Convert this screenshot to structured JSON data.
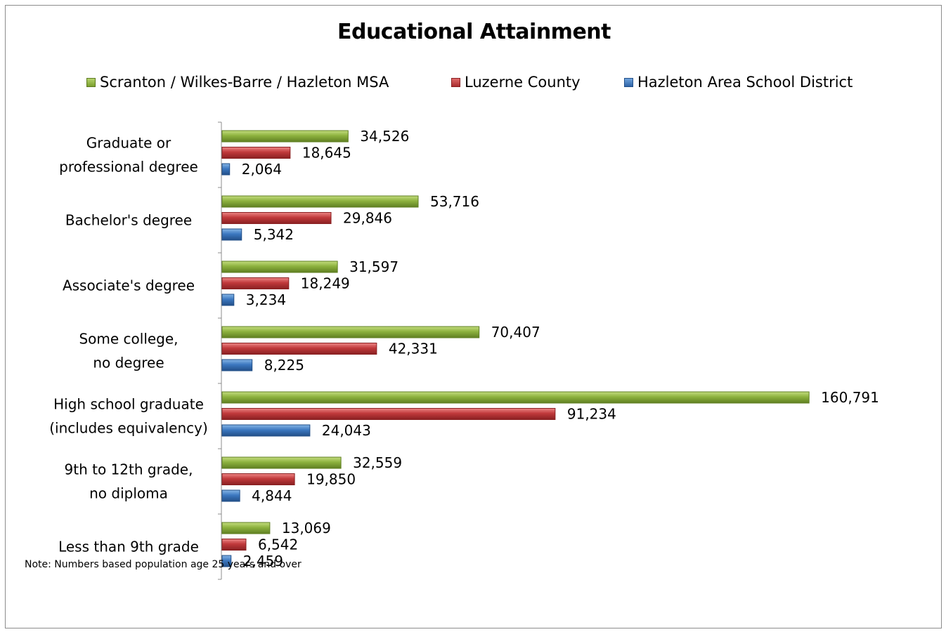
{
  "chart_data": {
    "type": "bar",
    "orientation": "horizontal",
    "title": "Educational Attainment",
    "categories": [
      [
        "Graduate or",
        "professional degree"
      ],
      [
        "Bachelor's degree"
      ],
      [
        "Associate's degree"
      ],
      [
        "Some college,",
        "no degree"
      ],
      [
        "High school graduate",
        "(includes equivalency)"
      ],
      [
        "9th to 12th grade,",
        "no diploma"
      ],
      [
        "Less than 9th grade"
      ]
    ],
    "series": [
      {
        "name": "Scranton / Wilkes-Barre / Hazleton MSA",
        "color": "#8db23e",
        "values": [
          34526,
          53716,
          31597,
          70407,
          160791,
          32559,
          13069
        ],
        "labels": [
          "34,526",
          "53,716",
          "31,597",
          "70,407",
          "160,791",
          "32,559",
          "13,069"
        ]
      },
      {
        "name": "Luzerne County",
        "color": "#c0393b",
        "values": [
          18645,
          29846,
          18249,
          42331,
          91234,
          19850,
          6542
        ],
        "labels": [
          "18,645",
          "29,846",
          "18,249",
          "42,331",
          "91,234",
          "19,850",
          "6,542"
        ]
      },
      {
        "name": "Hazleton Area School District",
        "color": "#3c78c0",
        "values": [
          2064,
          5342,
          3234,
          8225,
          24043,
          4844,
          2459
        ],
        "labels": [
          "2,064",
          "5,342",
          "3,234",
          "8,225",
          "24,043",
          "4,844",
          "2,459"
        ]
      }
    ],
    "xlim": [
      0,
      170000
    ],
    "legend_position": "top",
    "grid": false
  },
  "note": "Note: Numbers  based population age 25 years and over"
}
